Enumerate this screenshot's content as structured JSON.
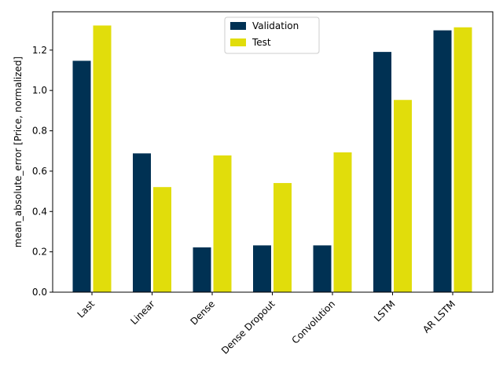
{
  "chart_data": {
    "type": "bar",
    "title": "",
    "xlabel": "",
    "ylabel": "mean_absolute_error [Price, normalized]",
    "categories": [
      "Last",
      "Linear",
      "Dense",
      "Dense Dropout",
      "Convolution",
      "LSTM",
      "AR LSTM"
    ],
    "series": [
      {
        "name": "Validation",
        "color": "#003153",
        "values": [
          1.147,
          0.688,
          0.222,
          0.232,
          0.232,
          1.191,
          1.298
        ]
      },
      {
        "name": "Test",
        "color": "#e1dd0b",
        "values": [
          1.322,
          0.521,
          0.678,
          0.541,
          0.693,
          0.953,
          1.313
        ]
      }
    ],
    "ylim": [
      0,
      1.39
    ],
    "yticks": [
      0.0,
      0.2,
      0.4,
      0.6,
      0.8,
      1.0,
      1.2
    ],
    "ytick_labels": [
      "0.0",
      "0.2",
      "0.4",
      "0.6",
      "0.8",
      "1.0",
      "1.2"
    ],
    "grid": false,
    "legend_position": "top-center"
  }
}
